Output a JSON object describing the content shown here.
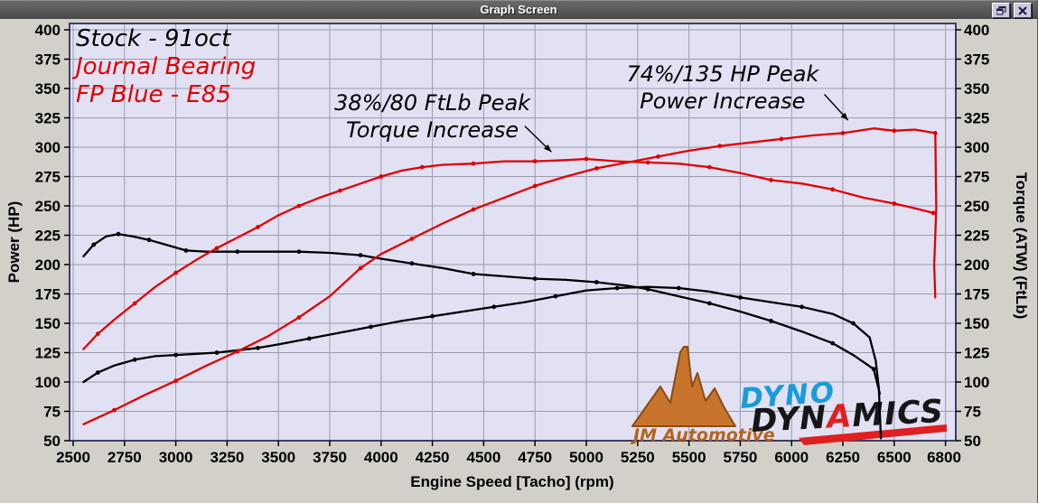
{
  "window": {
    "title": "Graph Screen",
    "titlebar_icons": [
      "restore-window-icon",
      "close-icon"
    ]
  },
  "colors": {
    "window_bg": "#d3d0c9",
    "titlebar": "#4e4e4e",
    "titlebar_text": "#ffffff",
    "plot_bg": "#e1e1f3",
    "grid": "#9c9cad",
    "frame": "#3d3d66",
    "curve_red": "#e10000",
    "curve_black": "#000000",
    "jm_orange": "#c0702a",
    "dyno_blue": "#1b9cd8",
    "dyno_black": "#161616",
    "dyno_red": "#e02020"
  },
  "chart_data": {
    "type": "line",
    "xlabel": "Engine Speed [Tacho] (rpm)",
    "ylabel_left": "Power (HP)",
    "ylabel_right": "Torque (ATW) (FtLb)",
    "xlim": [
      2500,
      6800
    ],
    "ylim": [
      50,
      400
    ],
    "xticks": [
      2500,
      2750,
      3000,
      3250,
      3500,
      3750,
      4000,
      4250,
      4500,
      4750,
      5000,
      5250,
      5500,
      5750,
      6000,
      6250,
      6500,
      6800
    ],
    "yticks": [
      50,
      75,
      100,
      125,
      150,
      175,
      200,
      225,
      250,
      275,
      300,
      325,
      350,
      375,
      400
    ],
    "grid": true,
    "legend": [
      {
        "label": "Stock - 91oct",
        "color": "#000000"
      },
      {
        "label": "Journal Bearing",
        "color": "#dd0000"
      },
      {
        "label": "FP Blue - E85",
        "color": "#dd0000"
      }
    ],
    "annotations": [
      {
        "lines": [
          "38%/80 FtLb Peak",
          "Torque Increase"
        ],
        "text_center": [
          4250,
          326
        ],
        "arrow": [
          [
            4700,
            318
          ],
          [
            4830,
            296
          ]
        ]
      },
      {
        "lines": [
          "74%/135 HP Peak",
          "Power Increase"
        ],
        "text_center": [
          5664,
          351
        ],
        "arrow": [
          [
            6160,
            345
          ],
          [
            6275,
            323
          ]
        ]
      }
    ],
    "series": [
      {
        "name": "stock_power",
        "color": "#000000",
        "points": [
          [
            2550,
            100
          ],
          [
            2620,
            108
          ],
          [
            2700,
            114
          ],
          [
            2800,
            119
          ],
          [
            2900,
            122
          ],
          [
            3000,
            123
          ],
          [
            3100,
            124
          ],
          [
            3200,
            125
          ],
          [
            3300,
            127
          ],
          [
            3400,
            129
          ],
          [
            3500,
            132
          ],
          [
            3650,
            137
          ],
          [
            3800,
            142
          ],
          [
            3950,
            147
          ],
          [
            4100,
            152
          ],
          [
            4250,
            156
          ],
          [
            4400,
            160
          ],
          [
            4550,
            164
          ],
          [
            4700,
            168
          ],
          [
            4850,
            173
          ],
          [
            5000,
            178
          ],
          [
            5150,
            180
          ],
          [
            5300,
            181
          ],
          [
            5450,
            180
          ],
          [
            5600,
            177
          ],
          [
            5750,
            172
          ],
          [
            5900,
            168
          ],
          [
            6050,
            164
          ],
          [
            6200,
            158
          ],
          [
            6300,
            150
          ],
          [
            6380,
            138
          ],
          [
            6410,
            118
          ],
          [
            6425,
            95
          ],
          [
            6435,
            52
          ]
        ]
      },
      {
        "name": "stock_torque",
        "color": "#000000",
        "points": [
          [
            2550,
            207
          ],
          [
            2600,
            217
          ],
          [
            2660,
            224
          ],
          [
            2720,
            226
          ],
          [
            2790,
            224
          ],
          [
            2870,
            221
          ],
          [
            2950,
            217
          ],
          [
            3050,
            212
          ],
          [
            3150,
            211
          ],
          [
            3300,
            211
          ],
          [
            3450,
            211
          ],
          [
            3600,
            211
          ],
          [
            3750,
            210
          ],
          [
            3900,
            208
          ],
          [
            4000,
            205
          ],
          [
            4150,
            201
          ],
          [
            4300,
            197
          ],
          [
            4450,
            192
          ],
          [
            4600,
            190
          ],
          [
            4750,
            188
          ],
          [
            4900,
            187
          ],
          [
            5050,
            185
          ],
          [
            5200,
            182
          ],
          [
            5300,
            179
          ],
          [
            5450,
            173
          ],
          [
            5600,
            167
          ],
          [
            5750,
            160
          ],
          [
            5900,
            152
          ],
          [
            6050,
            143
          ],
          [
            6200,
            133
          ],
          [
            6300,
            123
          ],
          [
            6400,
            111
          ],
          [
            6430,
            90
          ]
        ]
      },
      {
        "name": "fp_blue_power",
        "color": "#e10000",
        "points": [
          [
            2550,
            64
          ],
          [
            2700,
            76
          ],
          [
            2850,
            89
          ],
          [
            3000,
            101
          ],
          [
            3150,
            114
          ],
          [
            3300,
            126
          ],
          [
            3450,
            139
          ],
          [
            3600,
            155
          ],
          [
            3750,
            173
          ],
          [
            3900,
            197
          ],
          [
            4000,
            209
          ],
          [
            4150,
            222
          ],
          [
            4300,
            235
          ],
          [
            4450,
            247
          ],
          [
            4600,
            257
          ],
          [
            4750,
            267
          ],
          [
            4900,
            275
          ],
          [
            5050,
            282
          ],
          [
            5200,
            287
          ],
          [
            5350,
            292
          ],
          [
            5500,
            297
          ],
          [
            5650,
            301
          ],
          [
            5800,
            304
          ],
          [
            5950,
            307
          ],
          [
            6100,
            310
          ],
          [
            6250,
            312
          ],
          [
            6400,
            316
          ],
          [
            6500,
            314
          ],
          [
            6600,
            315
          ],
          [
            6700,
            312
          ],
          [
            6705,
            248
          ],
          [
            6695,
            200
          ],
          [
            6700,
            172
          ]
        ]
      },
      {
        "name": "fp_blue_torque",
        "color": "#e10000",
        "points": [
          [
            2550,
            128
          ],
          [
            2620,
            141
          ],
          [
            2700,
            153
          ],
          [
            2800,
            167
          ],
          [
            2900,
            181
          ],
          [
            3000,
            193
          ],
          [
            3100,
            204
          ],
          [
            3200,
            214
          ],
          [
            3300,
            223
          ],
          [
            3400,
            232
          ],
          [
            3500,
            242
          ],
          [
            3600,
            250
          ],
          [
            3700,
            257
          ],
          [
            3800,
            263
          ],
          [
            3900,
            269
          ],
          [
            4000,
            275
          ],
          [
            4100,
            280
          ],
          [
            4200,
            283
          ],
          [
            4300,
            285
          ],
          [
            4450,
            286
          ],
          [
            4600,
            288
          ],
          [
            4750,
            288
          ],
          [
            4900,
            289
          ],
          [
            5000,
            290
          ],
          [
            5150,
            288
          ],
          [
            5300,
            287
          ],
          [
            5450,
            286
          ],
          [
            5600,
            283
          ],
          [
            5750,
            278
          ],
          [
            5900,
            272
          ],
          [
            6050,
            269
          ],
          [
            6200,
            264
          ],
          [
            6350,
            257
          ],
          [
            6500,
            252
          ],
          [
            6600,
            248
          ],
          [
            6690,
            244
          ]
        ]
      }
    ]
  },
  "logos": {
    "jm": {
      "text": "JM Automotive"
    },
    "dyno": {
      "line1": "DYNO",
      "part1": "DYN",
      "part2": "A",
      "part3": "MICS"
    }
  }
}
